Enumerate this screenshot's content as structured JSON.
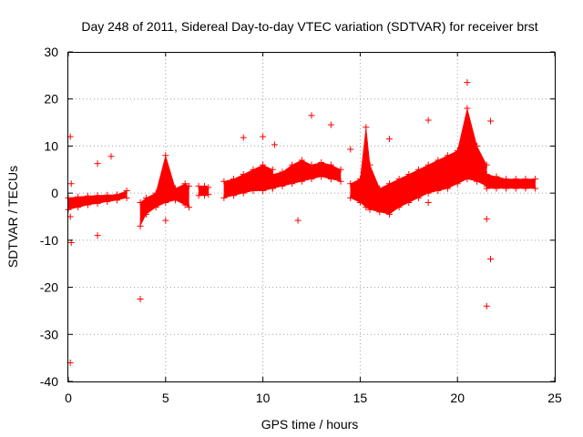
{
  "chart_data": {
    "type": "scatter",
    "title": "Day 248 of 2011, Sidereal Day-to-day VTEC variation (SDTVAR) for receiver brst",
    "xlabel": "GPS time / hours",
    "ylabel": "SDTVAR / TECUs",
    "xlim": [
      0,
      25
    ],
    "ylim": [
      -40,
      30
    ],
    "xticks": [
      0,
      5,
      10,
      15,
      20,
      25
    ],
    "yticks": [
      -40,
      -30,
      -20,
      -10,
      0,
      10,
      20,
      30
    ],
    "grid": true,
    "marker": "+",
    "color": "#ff0000",
    "series": [
      {
        "name": "SDTVAR",
        "dense_segments": [
          {
            "x": [
              0.0,
              0.5,
              1.0,
              1.5,
              2.0,
              2.5,
              3.0
            ],
            "lo": [
              -3.5,
              -3.0,
              -2.5,
              -2.2,
              -1.8,
              -1.5,
              -1.0
            ],
            "hi": [
              -1.0,
              -0.8,
              -0.6,
              -0.5,
              -0.4,
              -0.3,
              0.5
            ]
          },
          {
            "x": [
              3.7,
              4.0,
              4.5,
              5.0,
              5.5,
              6.0,
              6.2
            ],
            "lo": [
              -7.0,
              -4.5,
              -3.0,
              -2.0,
              -1.5,
              -2.5,
              -3.0
            ],
            "hi": [
              -2.0,
              -1.0,
              0.0,
              8.0,
              1.0,
              2.0,
              1.5
            ]
          },
          {
            "x": [
              6.7,
              7.0,
              7.2
            ],
            "lo": [
              -0.5,
              -0.5,
              -0.3
            ],
            "hi": [
              1.5,
              1.5,
              1.2
            ]
          },
          {
            "x": [
              8.0,
              8.5,
              9.0,
              9.5,
              10.0,
              10.5
            ],
            "lo": [
              -1.0,
              -0.5,
              0.0,
              0.5,
              0.5,
              1.0
            ],
            "hi": [
              2.5,
              3.0,
              4.0,
              5.0,
              6.0,
              5.0
            ]
          },
          {
            "x": [
              10.5,
              11.0,
              11.5,
              12.0,
              12.5,
              13.0,
              13.5,
              14.0
            ],
            "lo": [
              1.0,
              1.5,
              2.0,
              2.5,
              3.0,
              3.5,
              3.0,
              2.5
            ],
            "hi": [
              4.0,
              4.5,
              6.0,
              7.0,
              6.0,
              6.5,
              6.0,
              5.0
            ]
          },
          {
            "x": [
              14.5,
              15.0,
              15.3,
              15.5,
              16.0,
              16.5,
              17.0,
              17.5,
              18.0,
              18.5,
              19.0,
              19.5,
              20.0,
              20.5,
              21.0,
              21.5
            ],
            "lo": [
              -1.0,
              -2.0,
              -3.0,
              -3.5,
              -4.0,
              -4.5,
              -3.0,
              -2.0,
              -1.0,
              0.0,
              0.5,
              1.0,
              2.0,
              3.0,
              2.5,
              1.5
            ],
            "hi": [
              2.0,
              3.0,
              14.0,
              6.0,
              1.0,
              2.0,
              3.0,
              4.0,
              5.0,
              6.0,
              7.0,
              8.0,
              9.0,
              18.0,
              10.0,
              6.0
            ]
          },
          {
            "x": [
              21.5,
              22.0,
              22.5,
              23.0,
              23.5,
              24.0
            ],
            "lo": [
              1.0,
              1.0,
              1.0,
              1.0,
              1.0,
              1.0
            ],
            "hi": [
              4.0,
              3.5,
              3.0,
              3.0,
              3.0,
              3.0
            ]
          }
        ],
        "outliers": {
          "x": [
            0.1,
            0.1,
            0.1,
            0.15,
            0.15,
            1.5,
            1.5,
            2.2,
            3.7,
            5.0,
            9.0,
            10.0,
            10.6,
            11.8,
            12.5,
            13.5,
            14.5,
            16.5,
            18.5,
            18.5,
            20.5,
            21.5,
            21.5,
            21.7,
            21.7
          ],
          "y": [
            12.0,
            -5.0,
            -36.0,
            -10.5,
            2.0,
            6.3,
            -9.0,
            7.8,
            -22.5,
            -5.8,
            11.8,
            12.0,
            10.3,
            -5.8,
            16.5,
            14.5,
            9.3,
            11.5,
            15.5,
            -2.0,
            23.5,
            -5.5,
            -24.0,
            15.3,
            -14.0
          ]
        }
      }
    ]
  }
}
